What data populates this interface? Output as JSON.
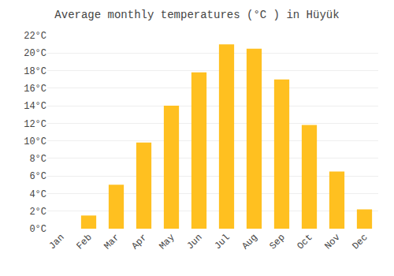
{
  "chart_data": {
    "type": "bar",
    "title": "Average monthly temperatures (°C ) in Hüyük",
    "categories": [
      "Jan",
      "Feb",
      "Mar",
      "Apr",
      "May",
      "Jun",
      "Jul",
      "Aug",
      "Sep",
      "Oct",
      "Nov",
      "Dec"
    ],
    "values": [
      0.0,
      1.5,
      5.0,
      9.8,
      14.0,
      17.8,
      21.0,
      20.5,
      17.0,
      11.8,
      6.5,
      2.2
    ],
    "color": "#FFC020",
    "ylim": [
      0,
      22
    ],
    "yticks": [
      {
        "value": 0,
        "label": "0°C"
      },
      {
        "value": 2,
        "label": "2°C"
      },
      {
        "value": 4,
        "label": "4°C"
      },
      {
        "value": 6,
        "label": "6°C"
      },
      {
        "value": 8,
        "label": "8°C"
      },
      {
        "value": 10,
        "label": "10°C"
      },
      {
        "value": 12,
        "label": "12°C"
      },
      {
        "value": 14,
        "label": "14°C"
      },
      {
        "value": 16,
        "label": "16°C"
      },
      {
        "value": 18,
        "label": "18°C"
      },
      {
        "value": 20,
        "label": "20°C"
      },
      {
        "value": 22,
        "label": "22°C"
      }
    ],
    "grid": true
  }
}
